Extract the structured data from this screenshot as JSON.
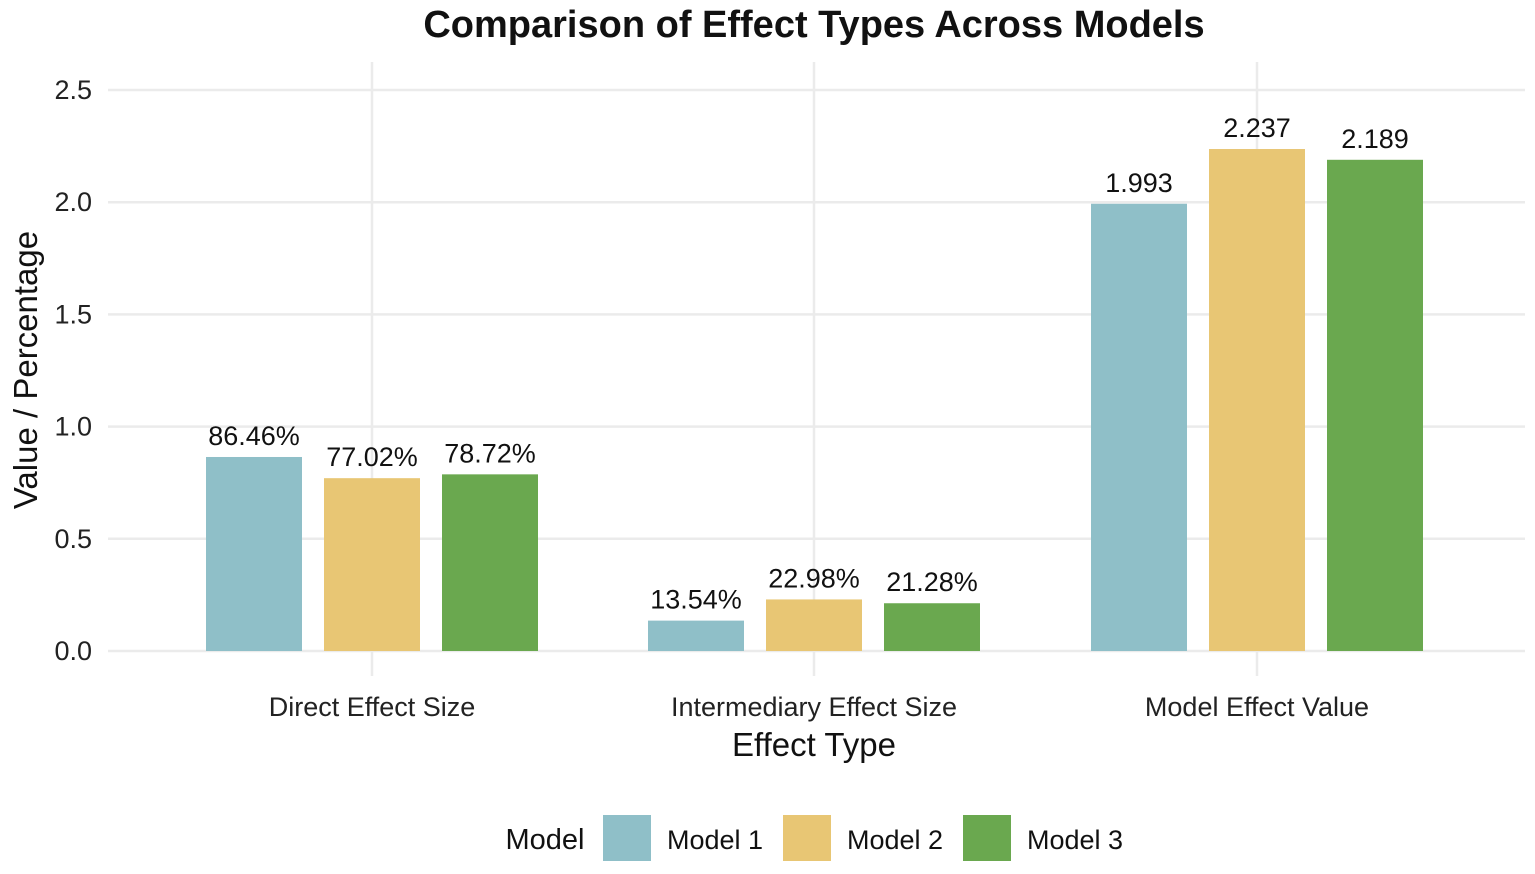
{
  "chart_data": {
    "type": "bar",
    "title": "Comparison of Effect Types Across Models",
    "xlabel": "Effect Type",
    "ylabel": "Value / Percentage",
    "categories": [
      "Direct Effect Size",
      "Intermediary Effect Size",
      "Model Effect Value"
    ],
    "ylim": [
      0,
      2.5
    ],
    "yticks": [
      "0.0",
      "0.5",
      "1.0",
      "1.5",
      "2.0",
      "2.5"
    ],
    "grid": true,
    "legend": {
      "title": "Model",
      "position": "bottom"
    },
    "series": [
      {
        "name": "Model 1",
        "color": "#8fbfc8",
        "values": [
          0.8646,
          0.1354,
          1.993
        ],
        "labels": [
          "86.46%",
          "13.54%",
          "1.993"
        ]
      },
      {
        "name": "Model 2",
        "color": "#e8c674",
        "values": [
          0.7702,
          0.2298,
          2.237
        ],
        "labels": [
          "77.02%",
          "22.98%",
          "2.237"
        ]
      },
      {
        "name": "Model 3",
        "color": "#6aa84f",
        "values": [
          0.7872,
          0.2128,
          2.189
        ],
        "labels": [
          "78.72%",
          "21.28%",
          "2.189"
        ]
      }
    ]
  }
}
